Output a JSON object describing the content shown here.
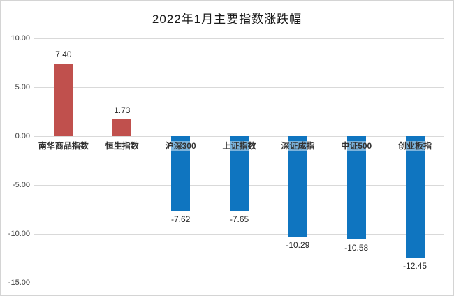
{
  "title": "2022年1月主要指数涨跌幅",
  "chart_data": {
    "type": "bar",
    "title": "2022年1月主要指数涨跌幅",
    "categories": [
      "南华商品指数",
      "恒生指数",
      "沪深300",
      "上证指数",
      "深证成指",
      "中证500",
      "创业板指"
    ],
    "values": [
      7.4,
      1.73,
      -7.62,
      -7.65,
      -10.29,
      -10.58,
      -12.45
    ],
    "value_labels": [
      "7.40",
      "1.73",
      "-7.62",
      "-7.65",
      "-10.29",
      "-10.58",
      "-12.45"
    ],
    "xlabel": "",
    "ylabel": "",
    "ylim": [
      -15,
      10
    ],
    "ytick_step": 5,
    "ytick_labels": [
      "10.00",
      "5.00",
      "0.00",
      "-5.00",
      "-10.00",
      "-15.00"
    ],
    "grid": true,
    "legend_position": "none",
    "colors": {
      "positive_bar": "#C0504D",
      "negative_bar": "#0F75C0",
      "gridline": "#D9D9D9",
      "label_text": "#262626",
      "category_text": "#333333",
      "background": "#FFFFFF"
    }
  }
}
